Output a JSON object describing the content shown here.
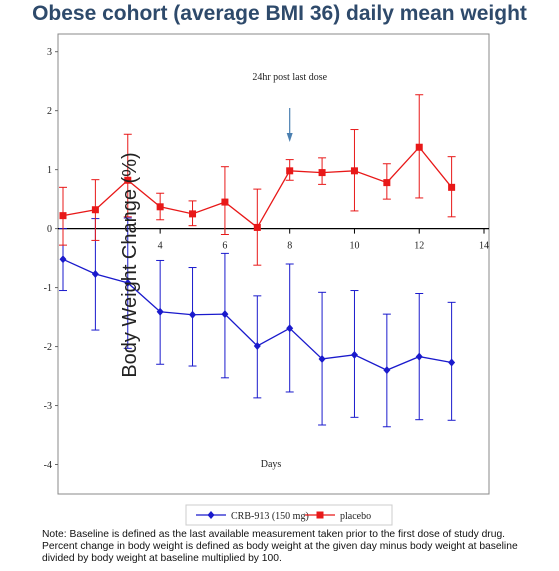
{
  "page_title": "Obese cohort (average BMI 36) daily mean weight",
  "note": "Note: Baseline is defined as the last available measurement taken prior to the first dose of study drug. Percent change in body weight is defined as body weight at the given day minus body weight at baseline divided by body weight at baseline multiplied by 100.",
  "chart_data": {
    "type": "line",
    "title": "",
    "xlabel": "Days",
    "ylabel": "Body Weight Change (%)",
    "xlim": [
      1,
      14
    ],
    "ylim": [
      -4.5,
      3.3
    ],
    "x_ticks": [
      4,
      6,
      8,
      10,
      12,
      14
    ],
    "y_ticks": [
      -4,
      -3,
      -2,
      -1,
      0,
      1,
      2,
      3
    ],
    "grid": false,
    "legend_position": "bottom",
    "annotation": {
      "text": "24hr post last dose",
      "x": 8
    },
    "series": [
      {
        "name": "CRB-913 (150 mg)",
        "color": "#1a1acc",
        "marker": "diamond",
        "x": [
          1,
          2,
          3,
          4,
          5,
          6,
          7,
          8,
          9,
          10,
          11,
          12,
          13,
          14
        ],
        "y": [
          -0.52,
          -0.77,
          -0.92,
          -1.41,
          -1.46,
          -1.45,
          -1.99,
          -1.69,
          -2.21,
          -2.14,
          -2.4,
          -2.17,
          -2.27,
          null
        ],
        "x_pts": [
          1,
          2,
          3,
          4,
          5,
          6,
          7,
          8,
          9,
          10,
          11,
          12,
          13
        ],
        "y_err_low": [
          -1.05,
          -1.72,
          -2.03,
          -2.3,
          -2.33,
          -2.53,
          -2.87,
          -2.77,
          -3.33,
          -3.2,
          -3.36,
          -3.24,
          -3.25
        ],
        "y_err_high": [
          0.0,
          0.17,
          0.18,
          -0.54,
          -0.66,
          -0.42,
          -1.14,
          -0.6,
          -1.08,
          -1.05,
          -1.45,
          -1.1,
          -1.25
        ]
      },
      {
        "name": "placebo",
        "color": "#e81818",
        "marker": "square",
        "x_pts": [
          1,
          2,
          3,
          4,
          5,
          6,
          7,
          8,
          9,
          10,
          11,
          12,
          13
        ],
        "y": [
          0.22,
          0.32,
          0.82,
          0.37,
          0.25,
          0.45,
          0.02,
          0.98,
          0.95,
          0.98,
          0.78,
          1.38,
          0.7
        ],
        "y_err_low": [
          -0.28,
          -0.2,
          0.2,
          0.15,
          0.05,
          -0.1,
          -0.62,
          0.82,
          0.75,
          0.3,
          0.5,
          0.52,
          0.2
        ],
        "y_err_high": [
          0.7,
          0.83,
          1.6,
          0.6,
          0.47,
          1.05,
          0.67,
          1.17,
          1.2,
          1.68,
          1.1,
          2.27,
          1.22
        ]
      }
    ]
  }
}
